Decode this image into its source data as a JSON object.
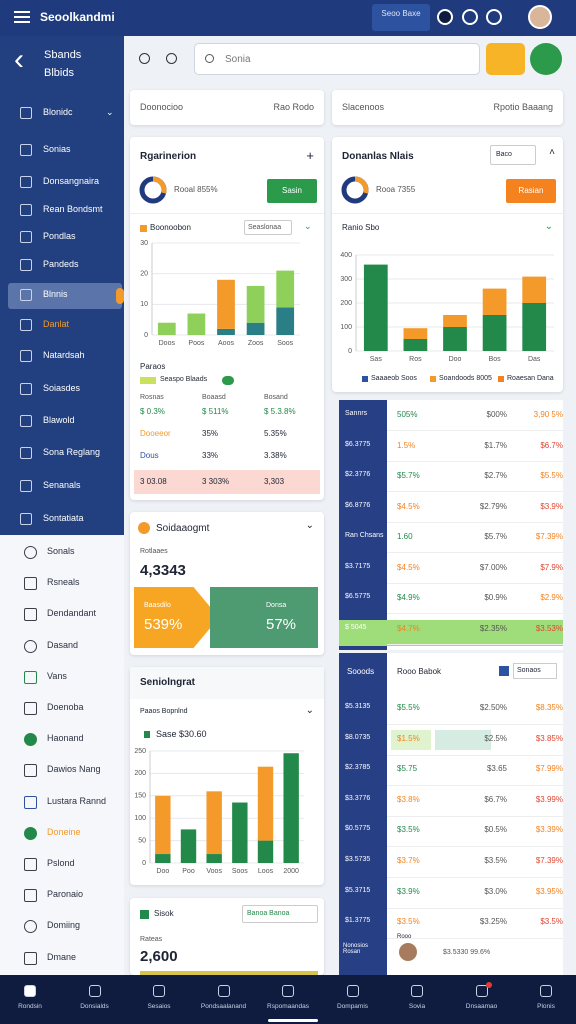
{
  "header": {
    "title": "Seoolkandmi",
    "badge": "Seoo Baxe"
  },
  "sidebar": {
    "back_title": "Sbands Blbids",
    "dark_items": [
      "Blonidc",
      "Sonias",
      "Donsangnaira",
      "Rean Bondsmt",
      "Pondlas",
      "Pandeds",
      "Blnnis",
      "Danlat",
      "Natardsah",
      "Soiasdes",
      "Blawold",
      "Sona Reglang",
      "Senanals",
      "Sontatiata"
    ],
    "light_items": [
      "Sonals",
      "Rsneals",
      "Dendandant",
      "Dasand",
      "Vans",
      "Doenoba",
      "Haonand",
      "Dawios Nang",
      "Lustara Rannd",
      "Doneine",
      "Pslond",
      "Paronaio",
      "Domiing",
      "Dmane"
    ]
  },
  "search": {
    "placeholder": "Sonia"
  },
  "filters": [
    {
      "label": "Doonocioo",
      "select": "Rao Rodo"
    },
    {
      "label": "Slacenoos",
      "select": "Rpotio Baaang"
    }
  ],
  "card_a": {
    "title": "Rgarinerion",
    "donut_label": "Rooal 855%",
    "button": "Sasin",
    "chart_title": "Boonoobon",
    "select": "Seaslonaa",
    "chart": {
      "type": "bar",
      "stacked": true,
      "categories": [
        "Doos",
        "Poos",
        "Aoos",
        "Zoos",
        "Soos"
      ],
      "ylim": [
        0,
        30
      ],
      "yticks": [
        0,
        10,
        20,
        30
      ],
      "series": [
        {
          "color": "#2a7f86",
          "values": [
            0,
            0,
            2,
            4,
            9
          ]
        },
        {
          "color": "#f39a2b",
          "values": [
            0,
            0,
            16,
            0,
            0
          ]
        },
        {
          "color": "#8fd05a",
          "values": [
            4,
            7,
            0,
            12,
            12
          ]
        }
      ]
    },
    "legend_title": "Paraos",
    "legend_item": "Seaspo Blaads",
    "stats_header": [
      "Rosnas",
      "Boaasd",
      "Bosand"
    ],
    "stats": [
      [
        "$ 0.3%",
        "$ 511%",
        "$ 5.3.8%"
      ],
      [
        "Dooeeor",
        "35%",
        "5.35%"
      ],
      [
        "Dous",
        "33%",
        "3.38%"
      ],
      [
        "3 03.08",
        "3 303%",
        "3,303"
      ]
    ]
  },
  "card_b": {
    "title": "Soidaaogmt",
    "label": "Rotlaaes",
    "value": "4,3343",
    "left_label": "Baasdilo",
    "left_value": "539%",
    "right_label": "Donsa",
    "right_value": "57%"
  },
  "card_c": {
    "title": "Seniolngrat",
    "subtitle": "Paaos Bopnlnd",
    "legend": "Sase $30.60",
    "chart": {
      "type": "bar",
      "stacked": true,
      "categories": [
        "Doo",
        "Poo",
        "Voos",
        "Soos",
        "Loos",
        "2000"
      ],
      "ylim": [
        0,
        250
      ],
      "yticks": [
        0,
        50,
        100,
        150,
        200,
        250
      ],
      "series": [
        {
          "color": "#23894a",
          "values": [
            20,
            75,
            20,
            135,
            50,
            245
          ]
        },
        {
          "color": "#f39a2b",
          "values": [
            130,
            0,
            140,
            0,
            165,
            0
          ]
        }
      ]
    }
  },
  "card_d": {
    "title": "Sisok",
    "select": "Banoa Banoa",
    "label": "Rateas",
    "value": "2,600"
  },
  "card_r": {
    "title": "Donanlas Nlais",
    "select": "Baco",
    "donut_label": "Rooa 7355",
    "button": "Rasian",
    "chart_title": "Ranio Sbo",
    "chart": {
      "type": "bar",
      "stacked": true,
      "categories": [
        "Sas",
        "Ros",
        "Doo",
        "Bos",
        "Das"
      ],
      "ylim": [
        0,
        400
      ],
      "yticks": [
        0,
        100,
        200,
        300,
        400
      ],
      "series": [
        {
          "color": "#23894a",
          "values": [
            360,
            50,
            100,
            150,
            200
          ]
        },
        {
          "color": "#f39a2b",
          "values": [
            0,
            45,
            50,
            110,
            110
          ]
        }
      ]
    },
    "legend": [
      "Saaaeob Soos",
      "Soandoods 8005",
      "Roaesan Dana"
    ]
  },
  "table_1": {
    "rows": [
      [
        "Sannrs",
        "505%",
        "$00%",
        "3,90 5%"
      ],
      [
        "$6.3775",
        "1.5%",
        "$1.7%",
        "$6.7%"
      ],
      [
        "$2.3776",
        "$5.7%",
        "$2.7%",
        "$5.5%"
      ],
      [
        "$6.8776",
        "$4.5%",
        "$2.79%",
        "$3.9%"
      ],
      [
        "Ran Chsans",
        "1.60",
        "$5.7%",
        "$7.39%"
      ],
      [
        "$3.7175",
        "$4.5%",
        "$7.00%",
        "$7.9%"
      ],
      [
        "$6.5775",
        "$4.9%",
        "$0.9%",
        "$2.9%"
      ],
      [
        "$ 5045",
        "$4.7%",
        "$2.35%",
        "$3.53%"
      ]
    ]
  },
  "table_2": {
    "header": [
      "Sooods",
      "Rooo Babok",
      "Sonaos"
    ],
    "rows": [
      [
        "$5.3135",
        "$5.5%",
        "$2.50%",
        "$8.35%"
      ],
      [
        "$8.0735",
        "$1.5%",
        "$2.5%",
        "$3.85%"
      ],
      [
        "$2.3785",
        "$5.75",
        "$3.65",
        "$7.99%"
      ],
      [
        "$3.3776",
        "$3.8%",
        "$6.7%",
        "$3.99%"
      ],
      [
        "$0.5775",
        "$3.5%",
        "$0.5%",
        "$3.39%"
      ],
      [
        "$3.5735",
        "$3.7%",
        "$3.5%",
        "$7.39%"
      ],
      [
        "$5.3715",
        "$3.9%",
        "$3.0%",
        "$3.95%"
      ],
      [
        "$1.3775",
        "$3.5%",
        "$3.25%",
        "$3.5%"
      ]
    ],
    "footer": [
      "Nonosios Rosan",
      "Rooo",
      "$3.5330 99.6%"
    ]
  },
  "bottom_nav": [
    "Rondsin",
    "Donsialds",
    "Sesaios",
    "Pondsaalanand",
    "Rspomaandas",
    "Dompamis",
    "Sovia",
    "Dnsaamao",
    "Plonis"
  ]
}
